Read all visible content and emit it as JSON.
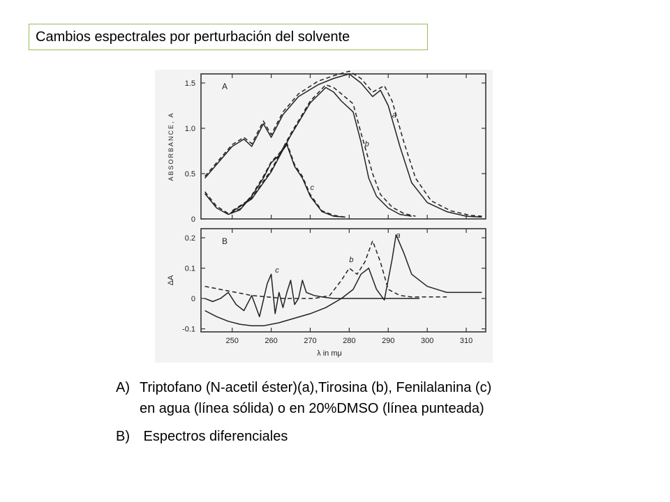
{
  "title": "Cambios espectrales por perturbación del solvente",
  "caption": {
    "a_marker": "A)",
    "a_line1": "Triptofano (N-acetil éster)(a),Tirosina (b), Fenilalanina (c)",
    "a_line2": "en agua (línea sólida) o en 20%DMSO (línea punteada)",
    "b_marker": "B)",
    "b_text": " Espectros diferenciales"
  },
  "chart_data": [
    {
      "type": "line",
      "panel": "A",
      "ylabel": "ABSORBANCE, A",
      "xlim": [
        242,
        315
      ],
      "ylim": [
        0,
        1.6
      ],
      "yticks": [
        0,
        0.5,
        1.0,
        1.5
      ],
      "yticklabels": [
        "0",
        "0.5",
        "1.0",
        "1.5"
      ],
      "series": [
        {
          "name": "a",
          "style": "solid",
          "x": [
            243,
            247,
            250,
            253,
            255,
            258,
            260,
            263,
            267,
            272,
            276,
            280,
            283,
            286,
            288,
            290,
            293,
            296,
            300,
            305,
            310,
            314
          ],
          "y": [
            0.45,
            0.65,
            0.8,
            0.88,
            0.8,
            1.05,
            0.9,
            1.15,
            1.35,
            1.48,
            1.55,
            1.6,
            1.5,
            1.35,
            1.42,
            1.25,
            0.8,
            0.4,
            0.18,
            0.08,
            0.03,
            0.02
          ]
        },
        {
          "name": "a",
          "style": "dashed",
          "x": [
            243,
            247,
            250,
            253,
            255,
            258,
            260,
            263,
            267,
            272,
            276,
            280,
            283,
            286,
            289,
            291,
            294,
            297,
            301,
            306,
            311,
            314
          ],
          "y": [
            0.47,
            0.67,
            0.82,
            0.9,
            0.83,
            1.08,
            0.93,
            1.18,
            1.38,
            1.52,
            1.58,
            1.63,
            1.55,
            1.4,
            1.47,
            1.3,
            0.85,
            0.45,
            0.2,
            0.09,
            0.04,
            0.03
          ]
        },
        {
          "name": "b",
          "style": "solid",
          "x": [
            250,
            255,
            260,
            265,
            270,
            274,
            276,
            278,
            281,
            283,
            285,
            287,
            290,
            293,
            296
          ],
          "y": [
            0.08,
            0.22,
            0.52,
            0.92,
            1.28,
            1.45,
            1.4,
            1.3,
            1.18,
            0.85,
            0.45,
            0.25,
            0.12,
            0.05,
            0.03
          ]
        },
        {
          "name": "b",
          "style": "dashed",
          "x": [
            250,
            255,
            260,
            265,
            270,
            274,
            276,
            278,
            281,
            283,
            286,
            288,
            291,
            294,
            297
          ],
          "y": [
            0.09,
            0.23,
            0.54,
            0.94,
            1.3,
            1.48,
            1.45,
            1.38,
            1.27,
            0.95,
            0.5,
            0.27,
            0.13,
            0.06,
            0.03
          ]
        },
        {
          "name": "c",
          "style": "solid",
          "x": [
            243,
            246,
            249,
            252,
            255,
            258,
            260,
            262,
            264,
            266,
            268,
            270,
            273,
            276,
            279
          ],
          "y": [
            0.28,
            0.12,
            0.05,
            0.1,
            0.25,
            0.45,
            0.62,
            0.7,
            0.82,
            0.58,
            0.45,
            0.25,
            0.08,
            0.03,
            0.02
          ]
        },
        {
          "name": "c",
          "style": "dashed",
          "x": [
            243,
            246,
            249,
            252,
            255,
            258,
            260,
            262,
            264,
            266,
            268,
            270,
            273,
            276,
            279
          ],
          "y": [
            0.3,
            0.14,
            0.06,
            0.11,
            0.26,
            0.47,
            0.63,
            0.72,
            0.84,
            0.6,
            0.47,
            0.27,
            0.09,
            0.04,
            0.02
          ]
        }
      ]
    },
    {
      "type": "line",
      "panel": "B",
      "ylabel": "ΔA",
      "xlabel": "λ in mμ",
      "xlim": [
        242,
        315
      ],
      "ylim": [
        -0.11,
        0.23
      ],
      "xticks": [
        250,
        260,
        270,
        280,
        290,
        300,
        310
      ],
      "xticklabels": [
        "250",
        "260",
        "270",
        "280",
        "290",
        "300",
        "310"
      ],
      "yticks": [
        -0.1,
        0,
        0.1,
        0.2
      ],
      "yticklabels": [
        "-0.1",
        "0",
        "0.1",
        "0.2"
      ],
      "series": [
        {
          "name": "a",
          "style": "solid",
          "x": [
            243,
            246,
            249,
            252,
            255,
            258,
            262,
            266,
            270,
            274,
            278,
            281,
            283,
            285,
            287,
            289,
            291,
            292,
            294,
            296,
            300,
            305,
            310,
            314
          ],
          "y": [
            -0.04,
            -0.06,
            -0.075,
            -0.085,
            -0.09,
            -0.09,
            -0.08,
            -0.065,
            -0.05,
            -0.03,
            0.0,
            0.03,
            0.08,
            0.1,
            0.03,
            -0.005,
            0.13,
            0.21,
            0.15,
            0.08,
            0.04,
            0.02,
            0.02,
            0.02
          ]
        },
        {
          "name": "c",
          "style": "solid",
          "x": [
            243,
            245,
            247,
            249,
            251,
            253,
            255,
            257,
            259,
            260,
            261,
            262,
            263,
            264,
            265,
            266,
            267,
            268,
            269,
            271,
            273,
            276,
            280,
            284,
            290,
            298
          ],
          "y": [
            0.0,
            -0.01,
            0.0,
            0.02,
            -0.02,
            -0.04,
            0.01,
            -0.06,
            0.05,
            0.08,
            -0.05,
            0.02,
            -0.03,
            0.02,
            0.06,
            -0.02,
            0.0,
            0.06,
            0.02,
            0.01,
            0.005,
            0.0,
            0.0,
            0.0,
            0.0,
            0.0
          ]
        },
        {
          "name": "b",
          "style": "dashed",
          "x": [
            243,
            247,
            251,
            255,
            259,
            263,
            267,
            271,
            275,
            278,
            280,
            282,
            284,
            286,
            288,
            290,
            293,
            296,
            300,
            305
          ],
          "y": [
            0.04,
            0.03,
            0.02,
            0.01,
            0.005,
            0.0,
            0.0,
            0.0,
            0.01,
            0.06,
            0.1,
            0.08,
            0.12,
            0.19,
            0.12,
            0.03,
            0.01,
            0.005,
            0.005,
            0.005
          ]
        }
      ]
    }
  ]
}
